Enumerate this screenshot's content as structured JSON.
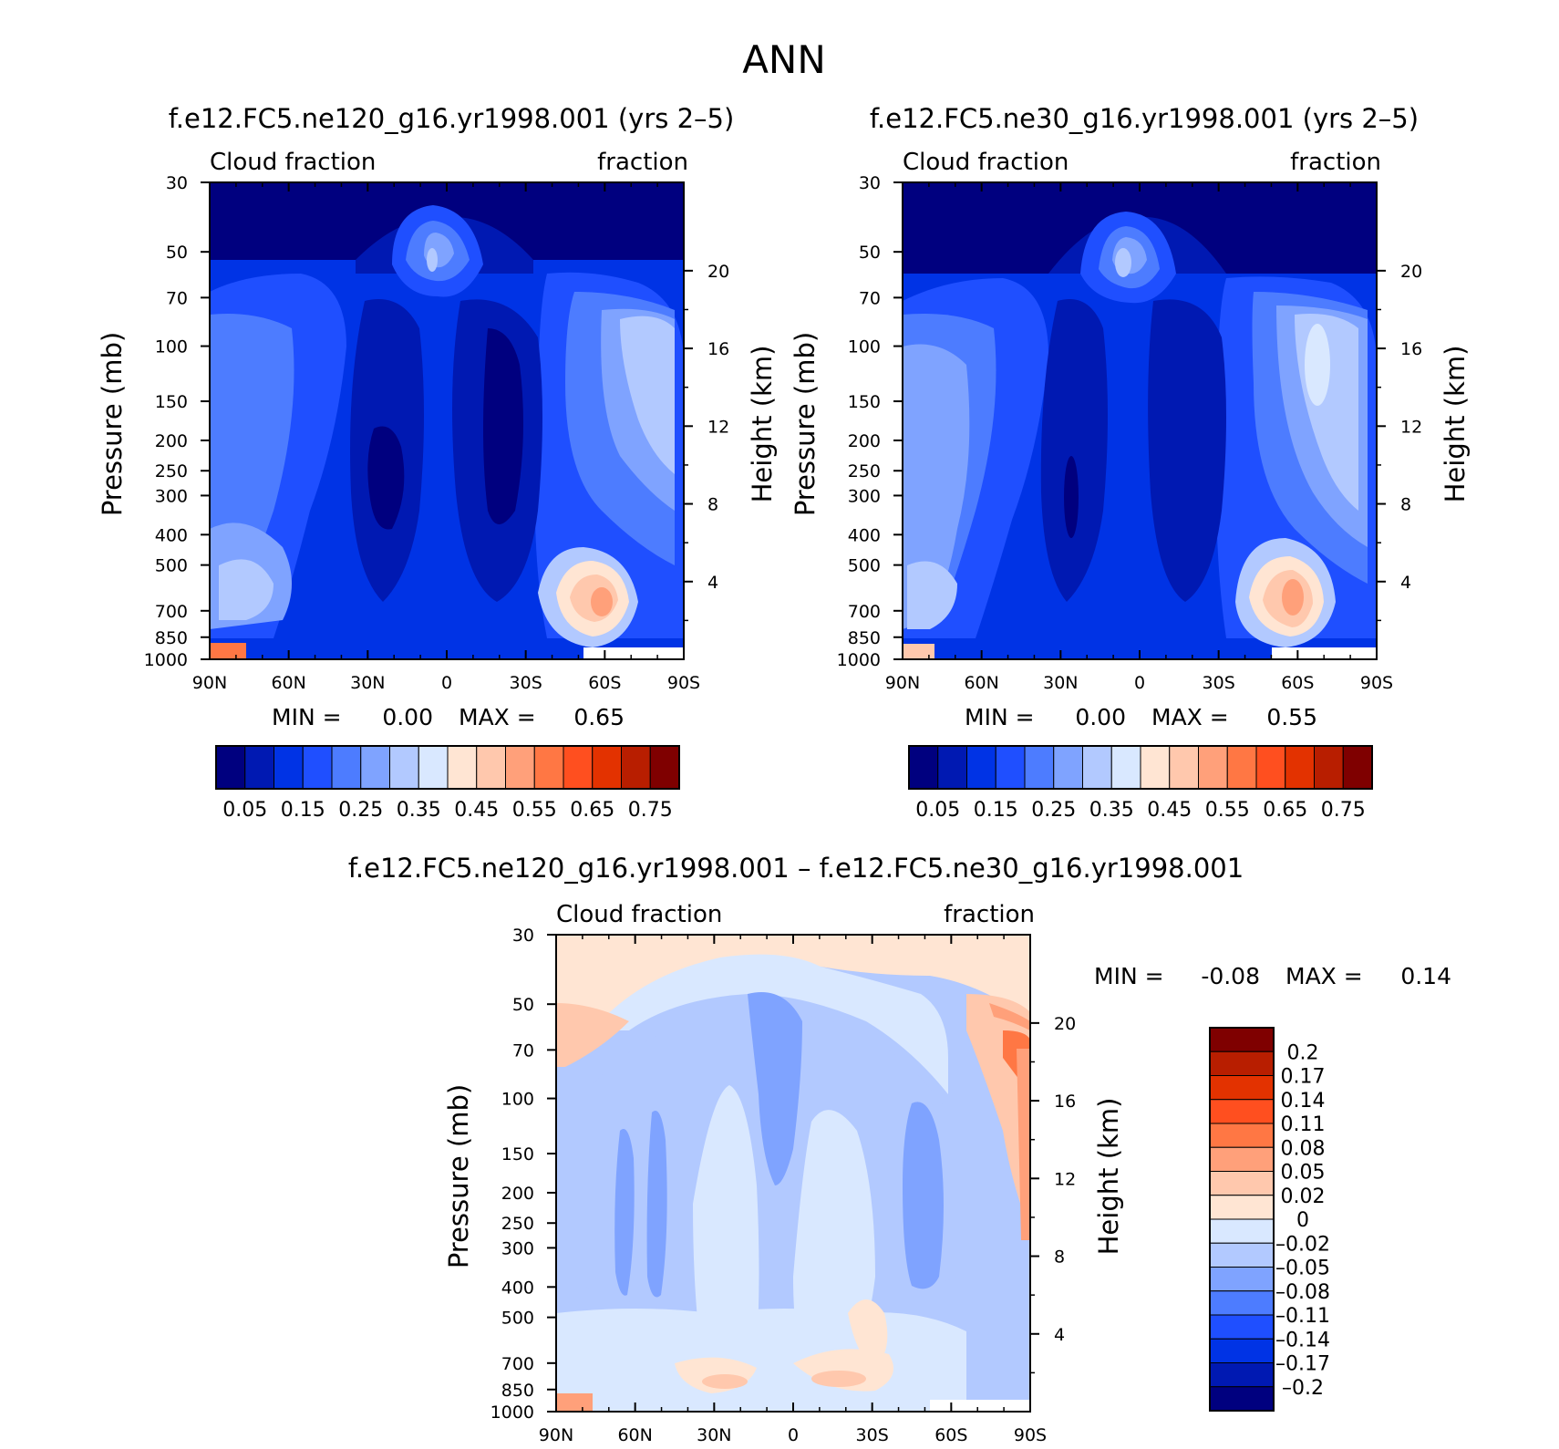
{
  "page_title": "ANN",
  "chart_data": [
    {
      "type": "contour",
      "id": "panel-1",
      "title": "f.e12.FC5.ne120_g16.yr1998.001 (yrs 2–5)",
      "left_label": "Cloud fraction",
      "right_label": "fraction",
      "ylabel": "Pressure (mb)",
      "y2label": "Height (km)",
      "xticks": [
        "90N",
        "60N",
        "30N",
        "0",
        "30S",
        "60S",
        "90S"
      ],
      "yticks": [
        "30",
        "50",
        "70",
        "100",
        "150",
        "200",
        "250",
        "300",
        "400",
        "500",
        "700",
        "850",
        "1000"
      ],
      "y2ticks": [
        "20",
        "16",
        "12",
        "8",
        "4"
      ],
      "min_label": "MIN =",
      "min_value": "0.00",
      "max_label": "MAX =",
      "max_value": "0.65",
      "colorbar_labels": [
        "0.05",
        "0.15",
        "0.25",
        "0.35",
        "0.45",
        "0.55",
        "0.65",
        "0.75"
      ],
      "colors": [
        "#00007f",
        "#0019b2",
        "#0033e5",
        "#1f4fff",
        "#4d7cff",
        "#7fa3ff",
        "#b2c9ff",
        "#d9e8ff",
        "#ffe5d3",
        "#ffc8ad",
        "#ffa07a",
        "#ff7744",
        "#ff4f1f",
        "#e33200",
        "#b81e00",
        "#7f0000"
      ]
    },
    {
      "type": "contour",
      "id": "panel-2",
      "title": "f.e12.FC5.ne30_g16.yr1998.001 (yrs 2–5)",
      "left_label": "Cloud fraction",
      "right_label": "fraction",
      "ylabel": "Pressure (mb)",
      "y2label": "Height (km)",
      "xticks": [
        "90N",
        "60N",
        "30N",
        "0",
        "30S",
        "60S",
        "90S"
      ],
      "yticks": [
        "30",
        "50",
        "70",
        "100",
        "150",
        "200",
        "250",
        "300",
        "400",
        "500",
        "700",
        "850",
        "1000"
      ],
      "y2ticks": [
        "20",
        "16",
        "12",
        "8",
        "4"
      ],
      "min_label": "MIN =",
      "min_value": "0.00",
      "max_label": "MAX =",
      "max_value": "0.55",
      "colorbar_labels": [
        "0.05",
        "0.15",
        "0.25",
        "0.35",
        "0.45",
        "0.55",
        "0.65",
        "0.75"
      ],
      "colors": [
        "#00007f",
        "#0019b2",
        "#0033e5",
        "#1f4fff",
        "#4d7cff",
        "#7fa3ff",
        "#b2c9ff",
        "#d9e8ff",
        "#ffe5d3",
        "#ffc8ad",
        "#ffa07a",
        "#ff7744",
        "#ff4f1f",
        "#e33200",
        "#b81e00",
        "#7f0000"
      ]
    },
    {
      "type": "contour",
      "id": "panel-diff",
      "title": "f.e12.FC5.ne120_g16.yr1998.001 – f.e12.FC5.ne30_g16.yr1998.001",
      "left_label": "Cloud fraction",
      "right_label": "fraction",
      "ylabel": "Pressure (mb)",
      "y2label": "Height (km)",
      "xticks": [
        "90N",
        "60N",
        "30N",
        "0",
        "30S",
        "60S",
        "90S"
      ],
      "yticks": [
        "30",
        "50",
        "70",
        "100",
        "150",
        "200",
        "250",
        "300",
        "400",
        "500",
        "700",
        "850",
        "1000"
      ],
      "y2ticks": [
        "20",
        "16",
        "12",
        "8",
        "4"
      ],
      "min_label": "MIN =",
      "min_value": "-0.08",
      "max_label": "MAX =",
      "max_value": "0.14",
      "colorbar_labels": [
        "0.2",
        "0.17",
        "0.14",
        "0.11",
        "0.08",
        "0.05",
        "0.02",
        "0",
        "–0.02",
        "–0.05",
        "–0.08",
        "–0.11",
        "–0.14",
        "–0.17",
        "–0.2"
      ],
      "colors": [
        "#7f0000",
        "#b81e00",
        "#e33200",
        "#ff4f1f",
        "#ff7744",
        "#ffa07a",
        "#ffc8ad",
        "#ffe5d3",
        "#d9e8ff",
        "#b2c9ff",
        "#7fa3ff",
        "#4d7cff",
        "#1f4fff",
        "#0033e5",
        "#0019b2",
        "#00007f"
      ]
    }
  ]
}
